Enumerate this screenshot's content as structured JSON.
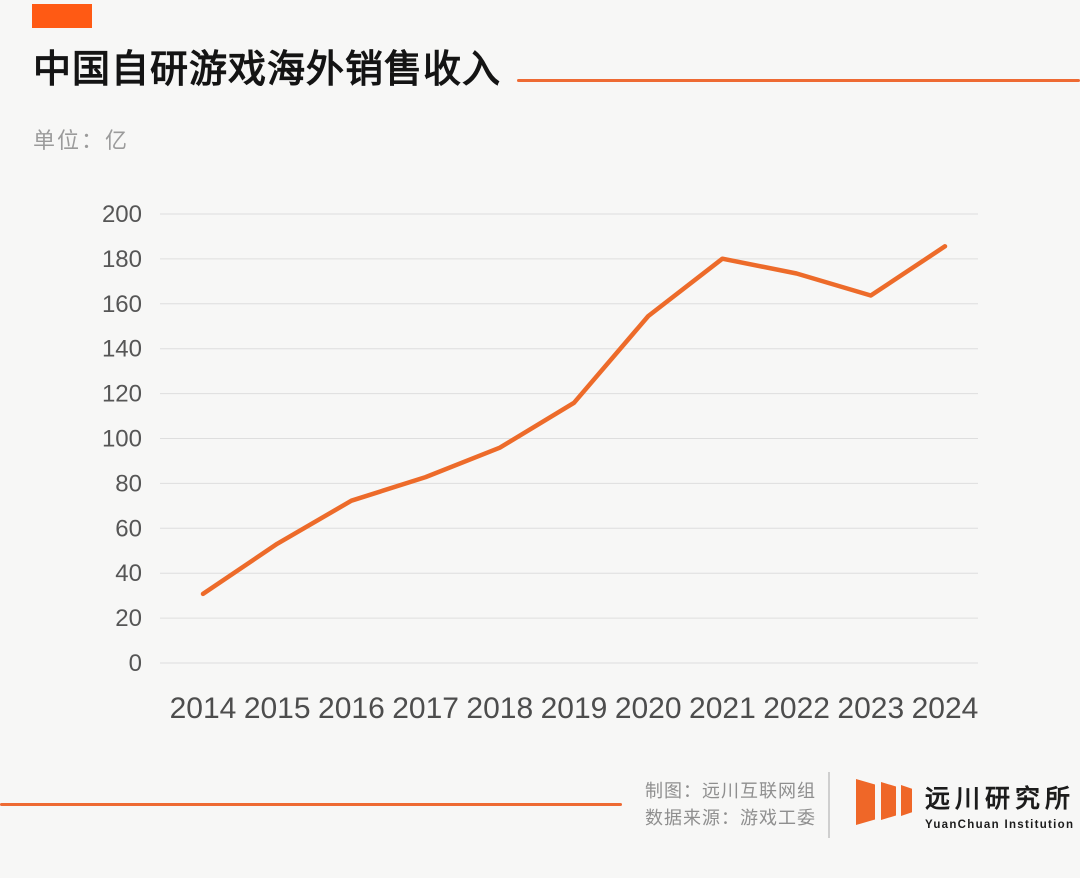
{
  "page": {
    "background_color": "#f7f7f6"
  },
  "header": {
    "badge_color": "#ff5a14",
    "rule_color": "#ee6a33",
    "title": "中国自研游戏海外销售收入",
    "unit_label": "单位：亿"
  },
  "chart_data": {
    "type": "line",
    "title": "中国自研游戏海外销售收入",
    "ylabel": "亿",
    "xlabel": "",
    "categories": [
      "2014",
      "2015",
      "2016",
      "2017",
      "2018",
      "2019",
      "2020",
      "2021",
      "2022",
      "2023",
      "2024"
    ],
    "values": [
      30.8,
      53.1,
      72.3,
      82.8,
      95.9,
      115.9,
      154.5,
      180.1,
      173.5,
      163.7,
      185.6
    ],
    "ylim": [
      0,
      200
    ],
    "ytick_step": 20,
    "grid": true,
    "legend": "none",
    "line_color": "#ed6b2a",
    "gridline_color": "#dedede",
    "ytick_label_color": "#565656",
    "xtick_label_color": "#4d4d4d"
  },
  "footer": {
    "rule_color": "#ee6a33",
    "credit_chart_by": "制图：远川互联网组",
    "credit_data_source": "数据来源：游戏工委",
    "logo": {
      "bar_color": "#ef6728",
      "name_cn": "远川研究所",
      "name_en": "YuanChuan Institution"
    }
  }
}
